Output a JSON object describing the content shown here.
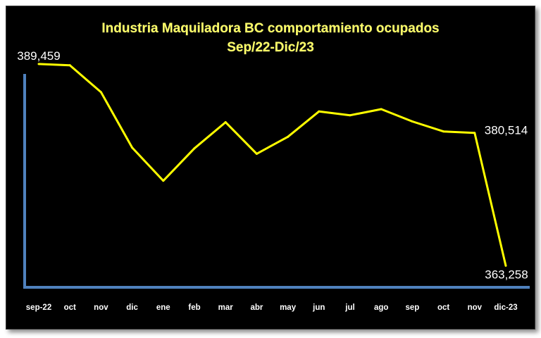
{
  "chart_data": {
    "type": "line",
    "title": "Industria Maquiladora BC comportamiento ocupados",
    "subtitle": "Sep/22-Dic/23",
    "xlabel": "",
    "ylabel": "",
    "categories": [
      "sep-22",
      "oct",
      "nov",
      "dic",
      "ene",
      "feb",
      "mar",
      "abr",
      "may",
      "jun",
      "jul",
      "ago",
      "sep",
      "oct",
      "nov",
      "dic-23"
    ],
    "series": [
      {
        "values": [
          389459,
          389300,
          385800,
          378600,
          374300,
          378500,
          381900,
          377800,
          380000,
          383300,
          382800,
          383600,
          382000,
          380700,
          380514,
          363258
        ]
      }
    ],
    "data_labels": [
      {
        "index": 0,
        "text": "389,459"
      },
      {
        "index": 14,
        "text": "380,514"
      },
      {
        "index": 15,
        "text": "363,258"
      }
    ],
    "ylim": [
      360000,
      390000
    ],
    "grid": false,
    "legend": "none",
    "colors": {
      "background": "#000000",
      "line": "#ffff00",
      "axis": "#4f81bd",
      "title": "#ffff66",
      "text": "#ffffff"
    }
  }
}
